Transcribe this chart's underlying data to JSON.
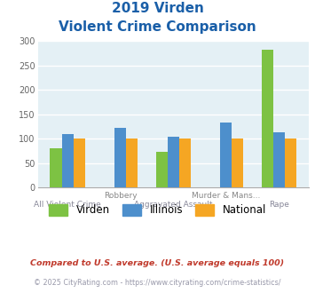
{
  "title_line1": "2019 Virden",
  "title_line2": "Violent Crime Comparison",
  "categories": [
    "All Violent Crime",
    "Robbery",
    "Aggravated Assault",
    "Murder & Mans...",
    "Rape"
  ],
  "cat_labels_top": [
    "",
    "Robbery",
    "",
    "Murder & Mans...",
    ""
  ],
  "cat_labels_bot": [
    "All Violent Crime",
    "",
    "Aggravated Assault",
    "",
    "Rape"
  ],
  "virden": [
    80,
    0,
    73,
    0,
    283
  ],
  "illinois": [
    110,
    122,
    104,
    133,
    114
  ],
  "national": [
    101,
    101,
    101,
    101,
    101
  ],
  "virden_color": "#7dc243",
  "illinois_color": "#4d8fcc",
  "national_color": "#f5a623",
  "plot_bg": "#e4f0f5",
  "ylim": [
    0,
    300
  ],
  "yticks": [
    0,
    50,
    100,
    150,
    200,
    250,
    300
  ],
  "title_color": "#1a5fa8",
  "footnote1": "Compared to U.S. average. (U.S. average equals 100)",
  "footnote2": "© 2025 CityRating.com - https://www.cityrating.com/crime-statistics/",
  "footnote1_color": "#c0392b",
  "footnote2_color": "#9999aa"
}
